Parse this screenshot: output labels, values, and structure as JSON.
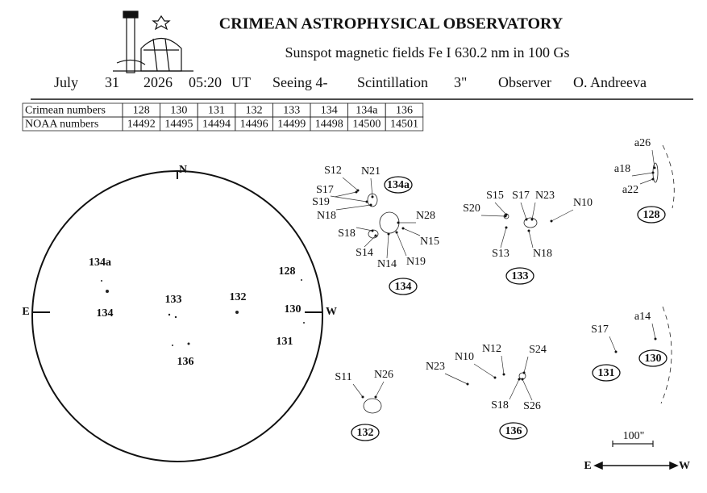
{
  "header": {
    "title": "CRIMEAN ASTROPHYSICAL OBSERVATORY",
    "subtitle": "Sunspot  magnetic  fields  Fe I 630.2 nm in 100 Gs",
    "observation": {
      "month": "July",
      "day": "31",
      "year": "2026",
      "time": "05:20",
      "ut": "UT",
      "seeing": "Seeing 4-",
      "scintillation_label": "Scintillation",
      "scintillation": "3\"",
      "observer_label": "Observer",
      "observer": "O. Andreeva"
    }
  },
  "table": {
    "rows": [
      [
        "Crimean numbers",
        "128",
        "130",
        "131",
        "132",
        "133",
        "134",
        "134a",
        "136"
      ],
      [
        "NOAA numbers",
        "14492",
        "14495",
        "14494",
        "14496",
        "14499",
        "14498",
        "14500",
        "14501"
      ]
    ]
  },
  "disk": {
    "north": "N",
    "east": "E",
    "west": "W",
    "labels": [
      "134a",
      "134",
      "133",
      "132",
      "128",
      "130",
      "131",
      "136"
    ]
  },
  "insets": [
    {
      "regions": [
        "134a",
        "134"
      ],
      "spots": [
        "S12",
        "N21",
        "S17",
        "S19",
        "N18",
        "S18",
        "N28",
        "S14",
        "N14",
        "N19",
        "N15"
      ]
    },
    {
      "regions": [
        "133"
      ],
      "spots": [
        "S15",
        "S17",
        "N23",
        "S20",
        "N10",
        "S13",
        "N18"
      ]
    },
    {
      "regions": [
        "128"
      ],
      "spots": [
        "a26",
        "a18",
        "a22"
      ]
    },
    {
      "regions": [
        "132"
      ],
      "spots": [
        "S11",
        "N26"
      ]
    },
    {
      "regions": [
        "136"
      ],
      "spots": [
        "N23",
        "N10",
        "N12",
        "S24",
        "S18",
        "S26"
      ]
    },
    {
      "regions": [
        "131",
        "130"
      ],
      "spots": [
        "S17",
        "a14"
      ]
    }
  ],
  "scale": "100\"",
  "direction": {
    "east": "E",
    "west": "W"
  }
}
